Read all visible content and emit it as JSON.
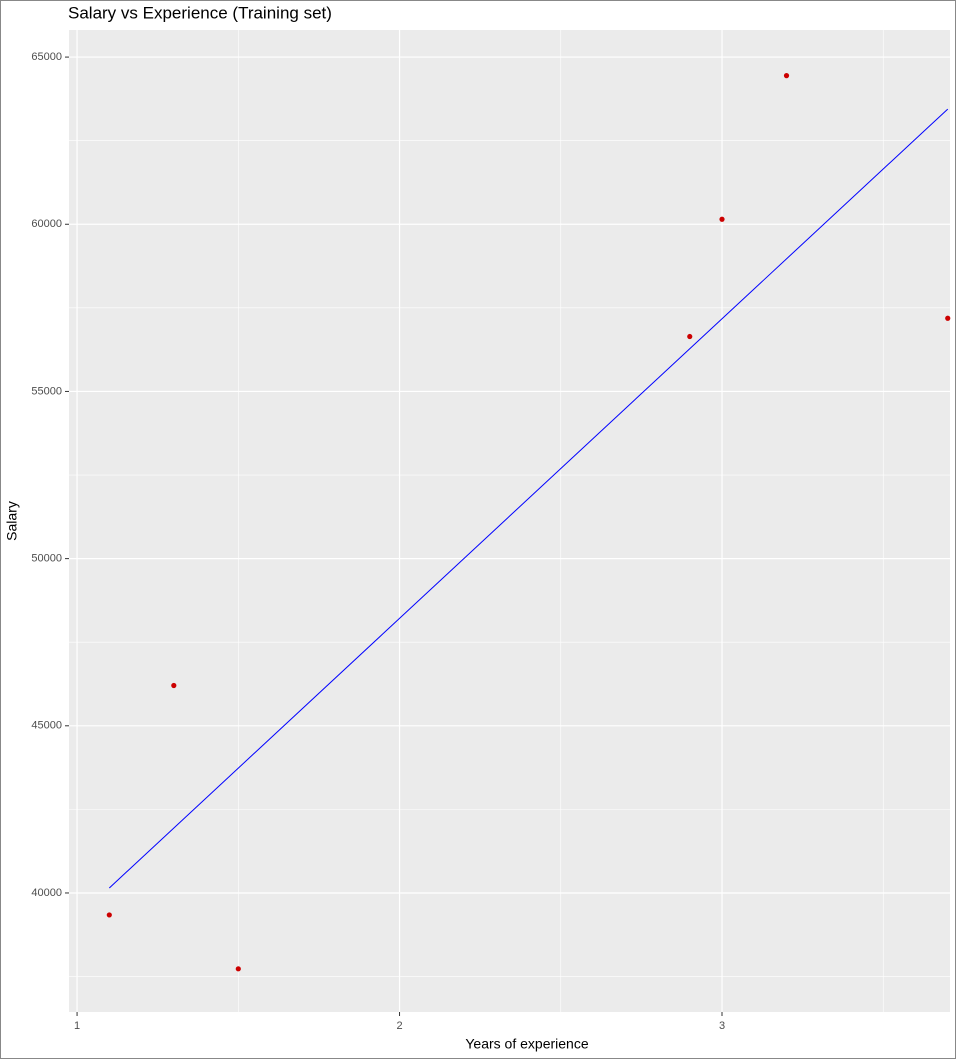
{
  "chart_data": {
    "type": "scatter",
    "title": "Salary vs Experience (Training set)",
    "x_label": "Years of experience",
    "y_label": "Salary",
    "points": {
      "x": [
        1.1,
        1.3,
        1.5,
        2.9,
        3.0,
        3.2,
        3.7
      ],
      "values": [
        39343,
        46205,
        37731,
        56642,
        60150,
        64445,
        57189
      ],
      "color": "#cc0000"
    },
    "fit_line": {
      "x": [
        1.1,
        3.7
      ],
      "values": [
        40150,
        63445
      ],
      "color": "#0000ff"
    },
    "xlim": [
      0.975,
      3.707
    ],
    "ylim": [
      36440,
      65810
    ],
    "xticks": [
      1,
      2,
      3
    ],
    "yticks": [
      40000,
      45000,
      50000,
      55000,
      60000,
      65000
    ],
    "x_minor_grid": [
      1.5,
      2.5,
      3.5
    ],
    "y_minor_grid": [
      37500,
      42500,
      47500,
      52500,
      57500,
      62500
    ],
    "grid": true
  }
}
